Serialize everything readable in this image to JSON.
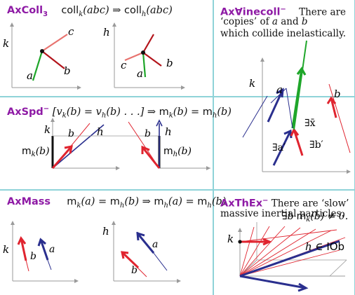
{
  "colors": {
    "axiom": "#8e1aa5",
    "grid": "#8fd3d8",
    "red": "#e0242f",
    "darkred": "#b3141b",
    "pink": "#e8736f",
    "green": "#1fa62a",
    "blue": "#2a2f8e",
    "axis": "#9a9a9a"
  },
  "p1": {
    "name": "AxColl",
    "sub": "3",
    "formula": "coll_k(abc) ⇒ coll_h(abc)",
    "f_coll1": "coll",
    "f_k": "k",
    "f_arg": "(abc) ⇒ ",
    "f_coll2": "coll",
    "f_h": "h",
    "f_arg2": "(abc)",
    "left": {
      "axis": "k",
      "a": "a",
      "b": "b",
      "c": "c"
    },
    "right": {
      "axis": "h",
      "a": "a",
      "b": "b",
      "c": "c"
    }
  },
  "p2": {
    "name": "Ax∀inecoll",
    "sup": "−",
    "text1": "There are",
    "text2": "‘copies’ of a and b",
    "text3": "which collide inelastically.",
    "t2a": "‘copies’ of ",
    "t2b": "a",
    "t2c": " and ",
    "t2d": "b",
    "labels": {
      "k": "k",
      "a": "a",
      "b": "b",
      "ex": "∃x̄",
      "ea": "∃a′",
      "eb": "∃b′"
    }
  },
  "p3": {
    "name": "AxSpd",
    "sup": "−",
    "formula": "[v_k(b) = v_h(b) …] ⇒ m_k(b) = m_h(b)",
    "f_pre": "[v",
    "f_k": "k",
    "f_mid": "(b) = v",
    "f_h": "h",
    "f_mid2": "(b) . . .] ⇒ ",
    "f_m1": "m",
    "f_k2": "k",
    "f_eq": "(b) = ",
    "f_m2": "m",
    "f_h2": "h",
    "f_end": "(b)",
    "left": {
      "axis": "k",
      "b": "b",
      "h": "h",
      "mass": "m",
      "mass_sub": "k",
      "mass_arg": "(b)"
    },
    "right": {
      "h": "h",
      "b": "b",
      "mass": "m",
      "mass_sub": "h",
      "mass_arg": "(b)"
    }
  },
  "p4": {
    "name": "AxMass",
    "f_m1": "m",
    "f_k": "k",
    "f_a1": "(a) = ",
    "f_m2": "m",
    "f_h": "h",
    "f_a2": "(b) ⇒ ",
    "f_m3": "m",
    "f_h2": "h",
    "f_a3": "(a) = ",
    "f_m4": "m",
    "f_h3": "h",
    "f_a4": "(b)",
    "f_k_first": "k",
    "left": {
      "axis": "k",
      "a": "a",
      "b": "b"
    },
    "right": {
      "axis": "h",
      "a": "a",
      "b": "b"
    }
  },
  "p5": {
    "name": "AxThEx",
    "sup": "−",
    "text1": "There are ‘slow’",
    "text2": "massive inertial particles.",
    "labels": {
      "k": "k",
      "exist": "∃b",
      "mass": "m",
      "mass_sub": "k",
      "mass_rest": "(b) ≠ 0.",
      "h": "h ∈ ",
      "iob": "IOb"
    }
  }
}
